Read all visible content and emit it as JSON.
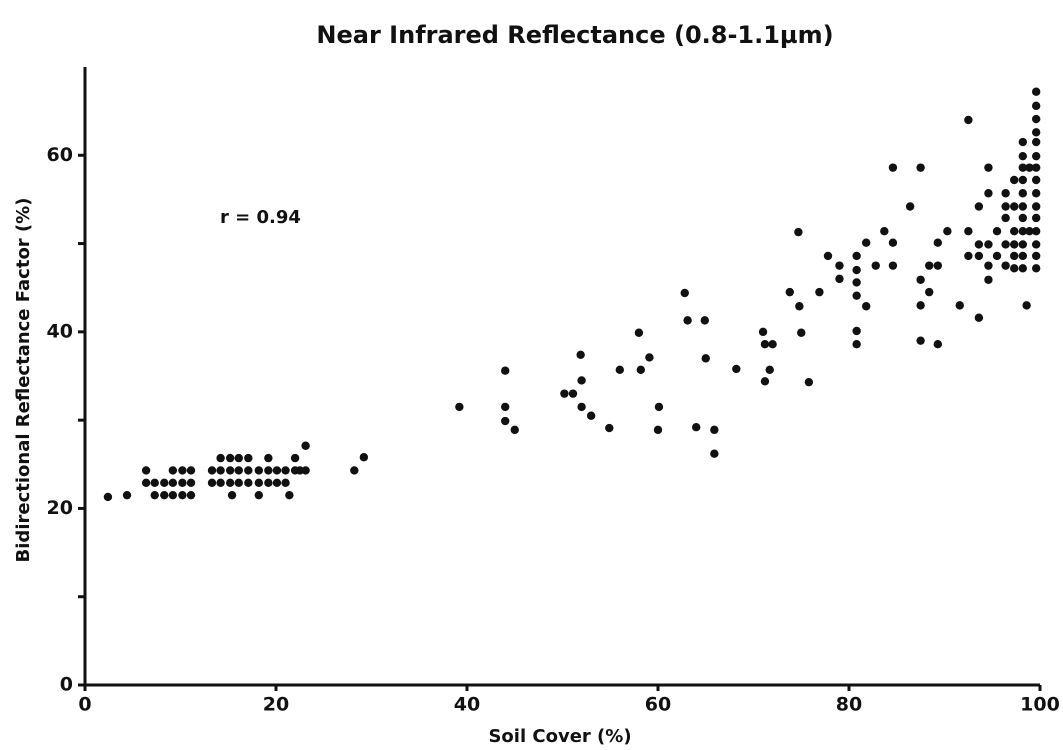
{
  "chart_data": {
    "type": "scatter",
    "title": "Near Infrared Reflectance (0.8-1.1µm)",
    "x_label": "Soil Cover (%)",
    "y_label": "Bidirectional Reflectance Factor (%)",
    "annotation": "r = 0.94",
    "color": "#111111",
    "xlim": [
      0,
      100
    ],
    "xticks": [
      0,
      20,
      40,
      60,
      80,
      100
    ],
    "ylim": [
      0,
      70
    ],
    "yticks": [
      0,
      20,
      40,
      60
    ],
    "y_minor_ticks": [
      10,
      30,
      50
    ],
    "grid": false,
    "x": [
      2.4,
      4.4,
      6.4,
      6.4,
      7.3,
      8.3,
      7.3,
      8.3,
      9.2,
      9.2,
      9.2,
      10.2,
      10.2,
      10.2,
      11.1,
      11.1,
      11.1,
      13.3,
      13.3,
      14.2,
      14.2,
      14.2,
      15.2,
      15.2,
      15.2,
      15.4,
      16.1,
      16.1,
      16.1,
      17.1,
      17.1,
      17.1,
      18.2,
      18.2,
      18.2,
      19.2,
      19.2,
      19.2,
      20.1,
      20.1,
      21,
      21,
      21.4,
      22,
      22,
      22.5,
      23.1,
      23.1,
      28.2,
      29.2,
      39.2,
      44,
      44,
      44,
      45,
      50.2,
      51.1,
      51.9,
      52,
      52,
      53,
      54.9,
      56,
      58,
      58.2,
      59.1,
      60.1,
      60,
      62.8,
      63.1,
      64,
      64.9,
      65,
      65.9,
      65.9,
      68.2,
      71,
      71.2,
      72,
      71.2,
      71.7,
      74.7,
      74.8,
      75,
      75.8,
      73.8,
      76.9,
      77.8,
      79,
      79,
      80.8,
      80.8,
      80.8,
      80.8,
      80.8,
      80.8,
      81.8,
      81.8,
      82.8,
      83.7,
      84.6,
      84.6,
      84.6,
      86.4,
      87.5,
      87.5,
      87.5,
      87.5,
      88.4,
      88.4,
      89.3,
      89.3,
      89.3,
      90.3,
      91.6,
      92.5,
      92.5,
      92.5,
      93.6,
      93.6,
      93.6,
      93.6,
      94.6,
      94.6,
      94.6,
      94.6,
      94.6,
      95.5,
      95.5,
      96.4,
      96.4,
      96.4,
      96.4,
      96.4,
      97.3,
      97.3,
      97.3,
      97.3,
      97.3,
      97.3,
      98.2,
      98.2,
      98.2,
      98.2,
      98.2,
      98.2,
      98.2,
      98.2,
      98.2,
      98.2,
      98.2,
      98.6,
      98.9,
      98.9,
      99.6,
      99.6,
      99.6,
      99.6,
      99.6,
      99.6,
      99.6,
      99.6,
      99.6,
      99.6,
      99.6,
      99.6,
      99.6,
      99.6,
      99.6
    ],
    "values": [
      21.3,
      21.5,
      24.3,
      22.9,
      22.9,
      22.9,
      21.5,
      21.5,
      24.3,
      22.9,
      21.5,
      24.3,
      22.9,
      21.5,
      24.3,
      22.9,
      21.5,
      22.9,
      24.3,
      25.7,
      24.3,
      22.9,
      25.7,
      24.3,
      22.9,
      21.5,
      25.7,
      24.3,
      22.9,
      25.7,
      24.3,
      22.9,
      21.5,
      24.3,
      22.9,
      25.7,
      24.3,
      22.9,
      24.3,
      22.9,
      24.3,
      22.9,
      21.5,
      24.3,
      25.7,
      24.3,
      27.1,
      24.3,
      24.3,
      25.8,
      31.5,
      35.6,
      31.5,
      29.9,
      28.9,
      33,
      33,
      37.4,
      34.5,
      31.5,
      30.5,
      29.1,
      35.7,
      39.9,
      35.7,
      37.1,
      31.5,
      28.9,
      44.4,
      41.3,
      29.2,
      41.3,
      37,
      28.9,
      26.2,
      35.8,
      40,
      38.6,
      38.6,
      34.4,
      35.7,
      51.3,
      42.9,
      39.9,
      34.3,
      44.5,
      44.5,
      48.6,
      47.5,
      46,
      48.6,
      47,
      45.6,
      44.1,
      40.1,
      38.6,
      42.9,
      50.1,
      47.5,
      51.4,
      58.6,
      50.1,
      47.5,
      54.2,
      58.6,
      45.9,
      43,
      39,
      44.5,
      47.5,
      50.1,
      47.5,
      38.6,
      51.4,
      43,
      64,
      51.4,
      48.6,
      41.6,
      54.2,
      49.9,
      48.6,
      55.7,
      58.6,
      49.9,
      47.5,
      45.9,
      51.4,
      48.6,
      54.2,
      55.7,
      52.9,
      49.9,
      47.5,
      57.2,
      54.2,
      51.4,
      49.9,
      48.6,
      47.2,
      61.5,
      59.9,
      58.6,
      57.2,
      55.7,
      54.2,
      52.9,
      51.4,
      49.9,
      48.6,
      47.2,
      43,
      58.6,
      51.4,
      67.2,
      65.6,
      64.1,
      62.6,
      61.5,
      59.9,
      58.6,
      57.2,
      55.7,
      54.2,
      52.9,
      51.4,
      49.9,
      48.6,
      47.2
    ]
  }
}
